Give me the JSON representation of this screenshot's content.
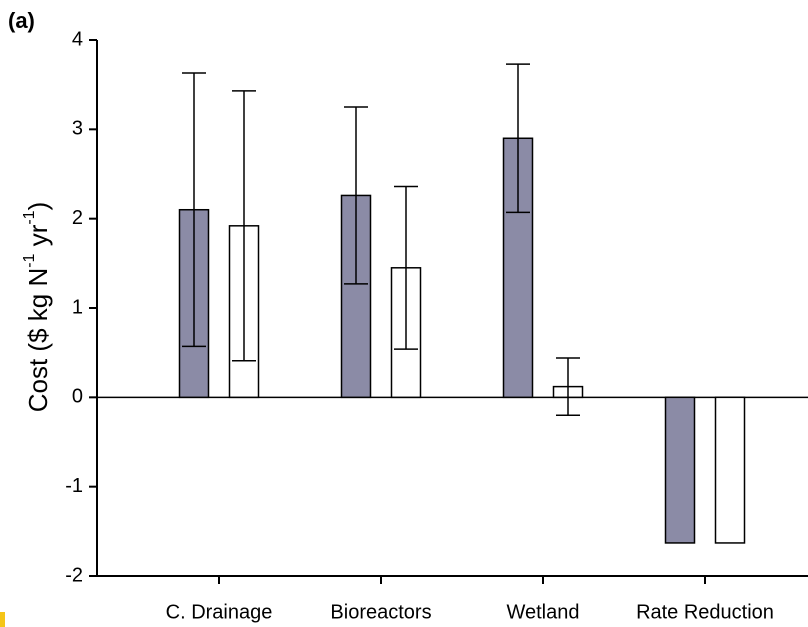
{
  "chart_data": {
    "type": "bar",
    "title": "(a)",
    "y_label": [
      "Cost ($ kg N",
      "-1",
      " yr",
      "-1",
      ")"
    ],
    "categories": [
      "C. Drainage",
      "Bioreactors",
      "Wetland",
      "Rate Reduction"
    ],
    "series": [
      {
        "color": "#8b8ba6",
        "values": [
          2.1,
          2.26,
          2.9,
          -1.63
        ],
        "errors": [
          1.53,
          0.99,
          0.83,
          null
        ]
      },
      {
        "color": "#ffffff",
        "values": [
          1.92,
          1.45,
          0.12,
          -1.63
        ],
        "errors": [
          1.51,
          0.91,
          0.32,
          null
        ]
      }
    ],
    "ylim": [
      -2,
      4
    ],
    "yticks": [
      -2,
      -1,
      0,
      1,
      2,
      3,
      4
    ]
  }
}
